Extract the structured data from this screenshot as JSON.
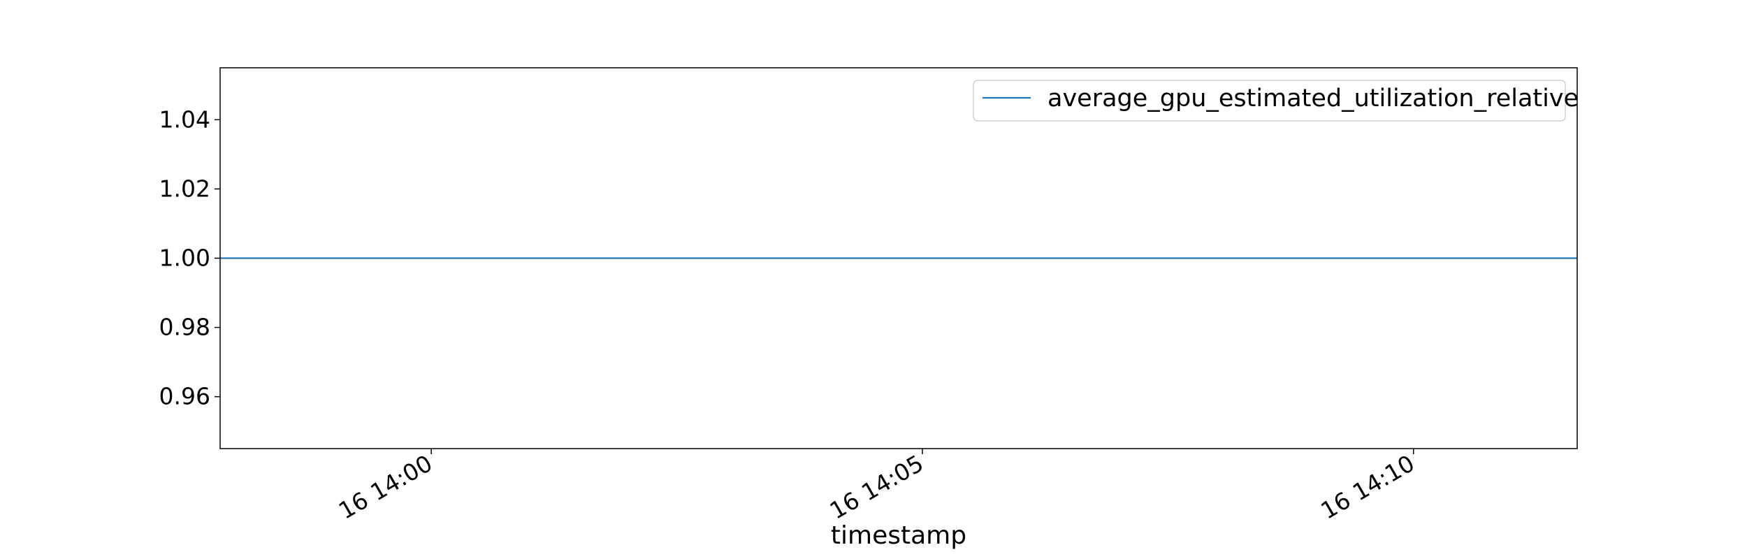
{
  "chart_data": {
    "type": "line",
    "xlabel": "timestamp",
    "ylabel": "",
    "x_ticks": [
      "16 14:00",
      "16 14:05",
      "16 14:10"
    ],
    "y_ticks": [
      "0.96",
      "0.98",
      "1.00",
      "1.02",
      "1.04"
    ],
    "ylim": [
      0.945,
      1.055
    ],
    "xlim": [
      "16 13:57:51",
      "16 14:11:40"
    ],
    "grid": false,
    "legend_position": "top-right",
    "series": [
      {
        "name": "average_gpu_estimated_utilization_relative",
        "color": "#1f77b4",
        "x": [
          "16 13:57:51",
          "16 14:11:40"
        ],
        "values": [
          1.0,
          1.0
        ]
      }
    ]
  }
}
